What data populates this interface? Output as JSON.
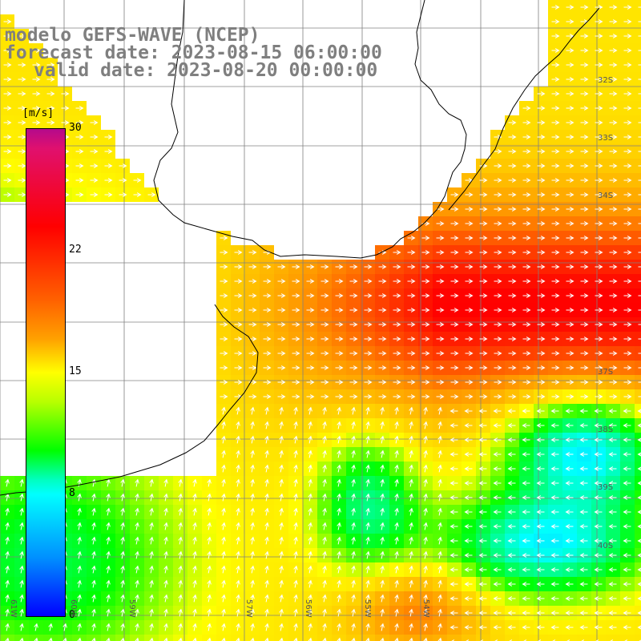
{
  "header": {
    "line1": "modelo GEFS-WAVE (NCEP)",
    "line2": "forecast date: 2023-08-15 06:00:00",
    "line3": "valid date: 2023-08-20 00:00:00"
  },
  "colorbar": {
    "unit": "[m/s]",
    "ticks": [
      "30",
      "22",
      "15",
      "8",
      "0"
    ],
    "tick_values": [
      30,
      22,
      15,
      8,
      0
    ],
    "colors": [
      "#0000ff",
      "#00ffff",
      "#00ff00",
      "#ffff00",
      "#ff8000",
      "#ff0000",
      "#b40a8c"
    ]
  },
  "map": {
    "lat_labels": [
      "32S",
      "33S",
      "34S",
      "37S",
      "38S",
      "39S",
      "40S"
    ],
    "lon_labels": [
      "61W",
      "60W",
      "59W",
      "57W",
      "56W",
      "55W",
      "54W"
    ],
    "land_color": "#ffffff",
    "grid_color": "#808080"
  }
}
